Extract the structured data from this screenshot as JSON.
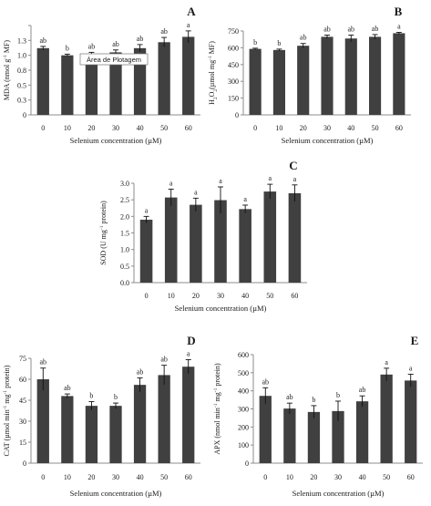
{
  "style": {
    "bar_color": "#404040",
    "axis_color": "#8c8c8c",
    "text_color": "#1a1a1a"
  },
  "chart_data": [
    {
      "id": "A",
      "type": "bar",
      "panel_label": "A",
      "categories": [
        "0",
        "10",
        "20",
        "30",
        "40",
        "50",
        "60"
      ],
      "values": [
        1.12,
        1.0,
        0.97,
        1.05,
        1.12,
        1.22,
        1.31
      ],
      "errors": [
        0.03,
        0.02,
        0.08,
        0.04,
        0.06,
        0.08,
        0.1
      ],
      "letters": [
        "ab",
        "b",
        "ab",
        "ab",
        "ab",
        "ab",
        "a"
      ],
      "ylabel_parts": [
        {
          "t": "MDA (nmol g"
        },
        {
          "t": "-1",
          "sup": true
        },
        {
          "t": " MF)"
        }
      ],
      "xlabel": "Selenium concentration (µM)",
      "ylim": [
        0,
        1.5
      ],
      "yticks": [
        0,
        0.2,
        0.4,
        0.6,
        0.8,
        1.0,
        1.2,
        1.4
      ],
      "ytick_labels": [
        "0",
        "0.3",
        "0.5",
        "0.8",
        "1.0",
        "1.3",
        ""
      ],
      "ytick_values": [
        0,
        0.25,
        0.5,
        0.75,
        1.0,
        1.25,
        1.5
      ],
      "overlay_text": "Área de Plotagem"
    },
    {
      "id": "B",
      "type": "bar",
      "panel_label": "B",
      "categories": [
        "0",
        "10",
        "20",
        "30",
        "40",
        "50",
        "60"
      ],
      "values": [
        590,
        580,
        618,
        698,
        683,
        698,
        730
      ],
      "errors": [
        6,
        8,
        20,
        15,
        30,
        20,
        8
      ],
      "letters": [
        "b",
        "b",
        "ab",
        "ab",
        "ab",
        "ab",
        "a"
      ],
      "ylabel_parts": [
        {
          "t": "H"
        },
        {
          "t": "2",
          "sub": true
        },
        {
          "t": "O"
        },
        {
          "t": "2",
          "sub": true
        },
        {
          "t": "(µmol mg"
        },
        {
          "t": "-1",
          "sup": true
        },
        {
          "t": " MF)"
        }
      ],
      "xlabel": "Selenium concentration (µM)",
      "ylim": [
        0,
        750
      ],
      "ytick_values": [
        0,
        150,
        300,
        450,
        600,
        750
      ],
      "ytick_labels": [
        "0",
        "150",
        "300",
        "450",
        "600",
        "750"
      ]
    },
    {
      "id": "C",
      "type": "bar",
      "panel_label": "C",
      "categories": [
        "0",
        "10",
        "20",
        "30",
        "40",
        "50",
        "60"
      ],
      "values": [
        1.9,
        2.57,
        2.35,
        2.49,
        2.22,
        2.75,
        2.7
      ],
      "errors": [
        0.1,
        0.25,
        0.2,
        0.4,
        0.12,
        0.22,
        0.25
      ],
      "letters": [
        "a",
        "a",
        "a",
        "a",
        "a",
        "a",
        "a"
      ],
      "ylabel_parts": [
        {
          "t": "SOD (U mg"
        },
        {
          "t": "-1",
          "sup": true
        },
        {
          "t": " protein)"
        }
      ],
      "xlabel": "Selenium concentration (µM)",
      "ylim": [
        0,
        3.0
      ],
      "ytick_values": [
        0,
        0.5,
        1.0,
        1.5,
        2.0,
        2.5,
        3.0
      ],
      "ytick_labels": [
        "0.0",
        "0.5",
        "1.0",
        "1.5",
        "2.0",
        "2.5",
        "3.0"
      ]
    },
    {
      "id": "D",
      "type": "bar",
      "panel_label": "D",
      "categories": [
        "0",
        "10",
        "20",
        "30",
        "40",
        "50",
        "60"
      ],
      "values": [
        60,
        48,
        41,
        41,
        56,
        63,
        69
      ],
      "errors": [
        8,
        1.5,
        3,
        2,
        5,
        7,
        5
      ],
      "letters": [
        "ab",
        "ab",
        "b",
        "b",
        "ab",
        "ab",
        "a"
      ],
      "ylabel_parts": [
        {
          "t": "CAT (µmol min"
        },
        {
          "t": "-1",
          "sup": true
        },
        {
          "t": " mg"
        },
        {
          "t": "-1",
          "sup": true
        },
        {
          "t": " protein)"
        }
      ],
      "xlabel": "Selenium concentration (µM)",
      "ylim": [
        0,
        75
      ],
      "ytick_values": [
        0,
        15,
        30,
        45,
        60,
        75
      ],
      "ytick_labels": [
        "0",
        "15",
        "30",
        "45",
        "60",
        "75"
      ]
    },
    {
      "id": "E",
      "type": "bar",
      "panel_label": "E",
      "categories": [
        "0",
        "10",
        "20",
        "30",
        "40",
        "50",
        "60"
      ],
      "values": [
        372,
        302,
        283,
        288,
        342,
        490,
        457
      ],
      "errors": [
        45,
        30,
        35,
        55,
        30,
        35,
        35
      ],
      "letters": [
        "ab",
        "ab",
        "b",
        "b",
        "ab",
        "a",
        "a"
      ],
      "ylabel_parts": [
        {
          "t": "APX (nmol min"
        },
        {
          "t": "-1",
          "sup": true
        },
        {
          "t": " mg"
        },
        {
          "t": "-1",
          "sup": true
        },
        {
          "t": " protein)"
        }
      ],
      "xlabel": "Selenium concentration (µM)",
      "ylim": [
        0,
        600
      ],
      "ytick_values": [
        0,
        100,
        200,
        300,
        400,
        500,
        600
      ],
      "ytick_labels": [
        "0",
        "100",
        "200",
        "300",
        "400",
        "500",
        "600"
      ]
    }
  ]
}
